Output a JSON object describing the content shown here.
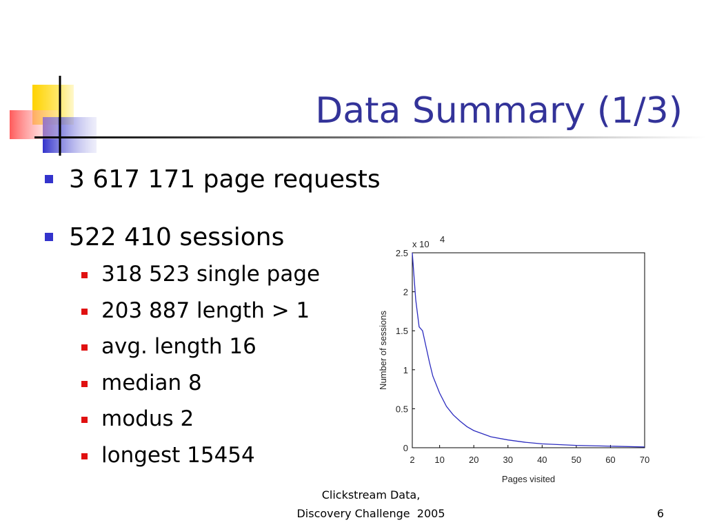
{
  "title": "Data Summary (1/3)",
  "bullets": [
    {
      "text": "3 617 171 page requests"
    },
    {
      "text": "522 410 sessions",
      "sub_bullets": [
        "318 523 single page",
        "203 887 length > 1",
        "avg. length 16",
        "median 8",
        "modus 2",
        "longest 15454"
      ]
    }
  ],
  "footer": {
    "lines": [
      "Clickstream Data,",
      "Discovery Challenge  2005"
    ],
    "page_number": 6
  },
  "chart_data": {
    "type": "line",
    "xlabel": "Pages visited",
    "ylabel": "Number of sessions",
    "y_multiplier": "x 10",
    "y_multiplier_exponent": "4",
    "x": [
      2,
      3,
      4,
      5,
      6,
      7,
      8,
      10,
      12,
      14,
      16,
      18,
      20,
      25,
      30,
      35,
      40,
      45,
      50,
      60,
      70
    ],
    "series": [
      {
        "color": "#2b2bbf",
        "values": [
          2.5,
          1.9,
          1.55,
          1.5,
          1.3,
          1.1,
          0.92,
          0.7,
          0.53,
          0.42,
          0.34,
          0.27,
          0.22,
          0.14,
          0.1,
          0.07,
          0.05,
          0.04,
          0.03,
          0.02,
          0.01
        ]
      }
    ],
    "xlim": [
      2,
      70
    ],
    "ylim": [
      0,
      2.5
    ],
    "xticks": [
      2,
      10,
      20,
      30,
      40,
      50,
      60,
      70
    ],
    "yticks": [
      0,
      0.5,
      1,
      1.5,
      2,
      2.5
    ]
  }
}
